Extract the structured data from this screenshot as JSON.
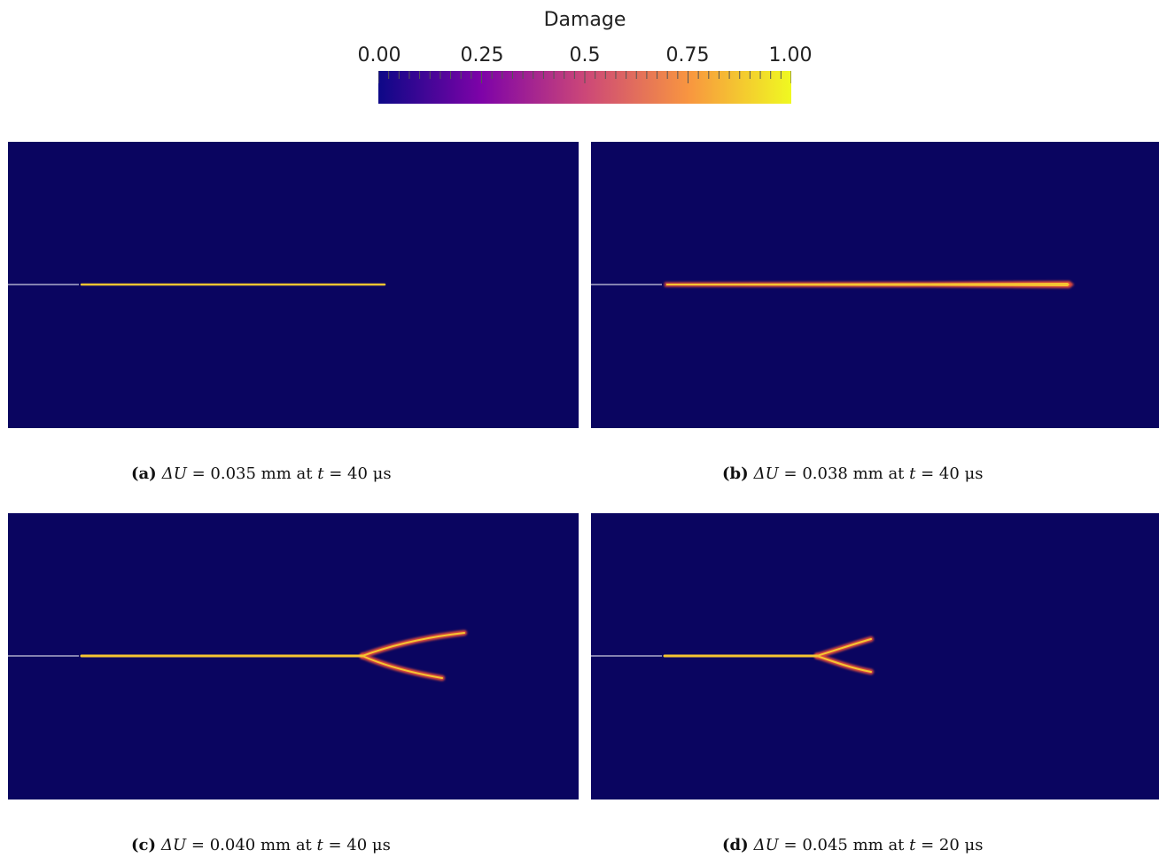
{
  "colorbar": {
    "title": "Damage",
    "ticks": [
      "0.00",
      "0.25",
      "0.5",
      "0.75",
      "1.00"
    ],
    "colors": [
      "#0d0887",
      "#7e03a8",
      "#cc4778",
      "#f89540",
      "#f0f921"
    ]
  },
  "panels": [
    {
      "label": "(a)",
      "math_var": "ΔU",
      "value": "= 0.035 mm at",
      "t_var": "t",
      "t_value": "= 40 μs"
    },
    {
      "label": "(b)",
      "math_var": "ΔU",
      "value": "= 0.038 mm at",
      "t_var": "t",
      "t_value": "= 40 μs"
    },
    {
      "label": "(c)",
      "math_var": "ΔU",
      "value": "= 0.040 mm at",
      "t_var": "t",
      "t_value": "= 40 μs"
    },
    {
      "label": "(d)",
      "math_var": "ΔU",
      "value": "= 0.045 mm at",
      "t_var": "t",
      "t_value": "= 20 μs"
    }
  ]
}
